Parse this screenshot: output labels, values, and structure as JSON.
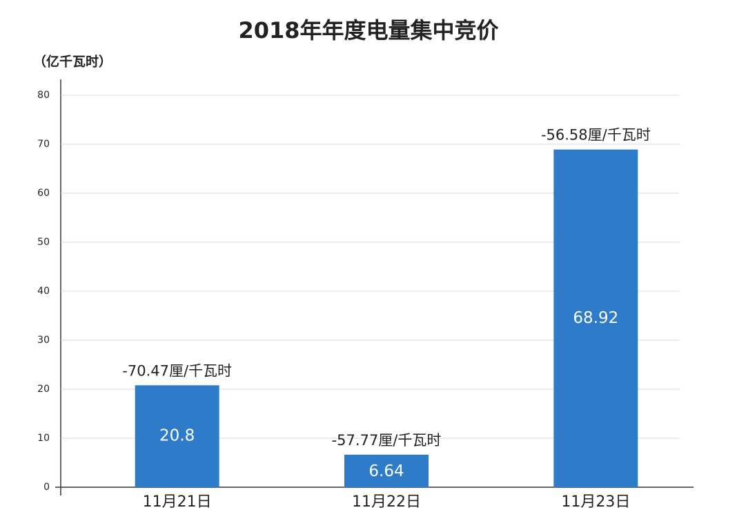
{
  "chart_data": {
    "type": "bar",
    "title": "2018年年度电量集中竞价",
    "y_label": "（亿千瓦时）",
    "categories": [
      "11月21日",
      "11月22日",
      "11月23日"
    ],
    "values": [
      20.8,
      6.64,
      68.92
    ],
    "annotations": [
      "-70.47厘/千瓦时",
      "-57.77厘/千瓦时",
      "-56.58厘/千瓦时"
    ],
    "color": "#2e7bc9",
    "ylim": [
      0,
      80
    ],
    "yticks": [
      0,
      10,
      20,
      30,
      40,
      50,
      60,
      70,
      80
    ],
    "grid": true
  }
}
